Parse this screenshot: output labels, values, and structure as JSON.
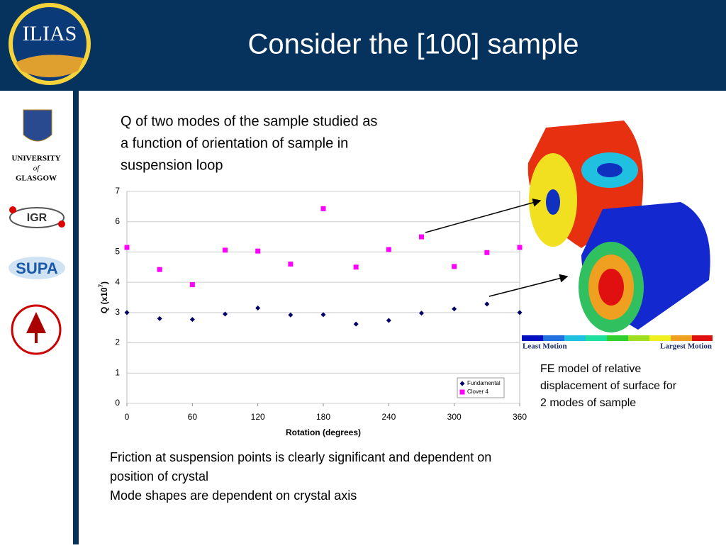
{
  "header": {
    "title": "Consider the [100] sample",
    "logo": "ILIAS"
  },
  "sidebar": {
    "glasgow": [
      "UNIVERSITY",
      "of",
      "GLASGOW"
    ],
    "igr": "IGR",
    "supa": "SUPA"
  },
  "intro": [
    "Q of two modes of the sample studied as",
    "a function of orientation of sample in",
    "suspension loop"
  ],
  "fe_caption": [
    "FE model of relative",
    "displacement of surface for",
    "2 modes of sample"
  ],
  "colorbar": {
    "low": "Least Motion",
    "high": "Largest Motion"
  },
  "notes": [
    "Friction at suspension points is clearly significant and dependent on",
    "position of crystal",
    "Mode shapes are dependent on crystal axis"
  ],
  "chart_data": {
    "type": "scatter",
    "x": [
      0,
      30,
      60,
      90,
      120,
      150,
      180,
      210,
      240,
      270,
      300,
      330,
      360
    ],
    "series": [
      {
        "name": "Fundamental",
        "color": "#000066",
        "marker": "diamond",
        "values": [
          3.0,
          2.8,
          2.77,
          2.95,
          3.15,
          2.92,
          2.93,
          2.62,
          2.74,
          2.98,
          3.12,
          3.28,
          3.0
        ]
      },
      {
        "name": "Clover 4",
        "color": "#ff00ff",
        "marker": "square",
        "values": [
          5.15,
          4.42,
          3.92,
          5.06,
          5.03,
          4.6,
          6.43,
          4.5,
          5.08,
          5.5,
          4.52,
          4.98,
          5.15
        ]
      }
    ],
    "xlabel": "Rotation (degrees)",
    "ylabel": [
      "Q (x10",
      "7",
      ")"
    ],
    "xlim": [
      0,
      360
    ],
    "xticks": [
      0,
      60,
      120,
      180,
      240,
      300,
      360
    ],
    "ylim": [
      0,
      7
    ],
    "yticks": [
      0,
      1,
      2,
      3,
      4,
      5,
      6,
      7
    ],
    "grid": true,
    "legend": "lower right"
  }
}
